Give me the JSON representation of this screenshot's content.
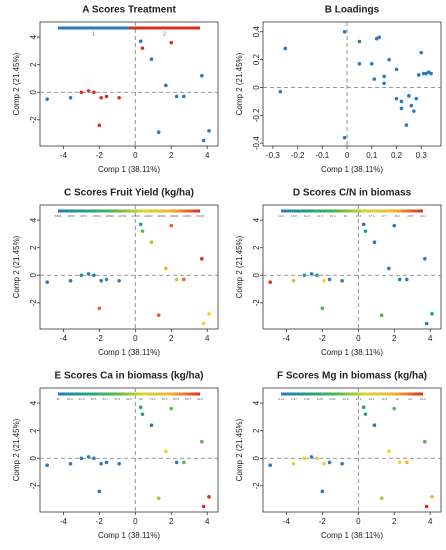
{
  "chart_data": [
    {
      "type": "scatter",
      "title": "A  Scores Treatment",
      "x_label": "Comp 1 (38.11%)",
      "y_label": "Comp 2 (21.45%)",
      "xlim": [
        -5.3,
        4.6
      ],
      "ylim": [
        -3.9,
        5.1
      ],
      "xticks": [
        -4,
        -2,
        0,
        2,
        4
      ],
      "yticks": [
        -2,
        0,
        2,
        4
      ],
      "x": [
        -4.9,
        -3.6,
        -3.0,
        -2.6,
        -2.3,
        -1.9,
        -1.6,
        -0.9,
        -2.0,
        0.3,
        0.4,
        0.9,
        1.3,
        1.7,
        2.0,
        2.3,
        2.7,
        3.7,
        3.8,
        4.1
      ],
      "y": [
        -0.5,
        -0.4,
        0.0,
        0.1,
        0.0,
        -0.4,
        -0.3,
        -0.4,
        -2.4,
        3.7,
        3.2,
        2.4,
        -2.9,
        0.5,
        3.6,
        -0.3,
        -0.3,
        1.2,
        -3.5,
        -2.8
      ],
      "colors": [
        "#2a7ab9",
        "#2a7ab9",
        "#d7301f",
        "#d7301f",
        "#d7301f",
        "#d7301f",
        "#d7301f",
        "#d7301f",
        "#d7301f",
        "#2a7ab9",
        "#d7301f",
        "#2a7ab9",
        "#2a7ab9",
        "#2a7ab9",
        "#d7301f",
        "#2a7ab9",
        "#2a7ab9",
        "#2a7ab9",
        "#2a7ab9",
        "#2a7ab9"
      ],
      "colorbar_colors": [
        "#2a7ab9",
        "#d7301f"
      ],
      "colorbar_labels": [
        "1",
        "2"
      ]
    },
    {
      "type": "scatter",
      "title": "B  Loadings",
      "x_label": "Comp 1 (38.11%)",
      "y_label": "Comp 2 (21.45%)",
      "xlim": [
        -0.34,
        0.38
      ],
      "ylim": [
        -0.42,
        0.47
      ],
      "xticks": [
        -0.3,
        -0.2,
        -0.1,
        0.0,
        0.1,
        0.2,
        0.3
      ],
      "yticks": [
        -0.4,
        -0.2,
        0.0,
        0.2,
        0.4
      ],
      "x": [
        -0.25,
        -0.27,
        -0.01,
        0.05,
        0.05,
        0.1,
        0.12,
        0.13,
        0.11,
        0.15,
        0.15,
        0.17,
        0.2,
        0.2,
        0.22,
        0.22,
        0.24,
        0.25,
        0.26,
        0.27,
        0.29,
        0.31,
        0.32,
        0.33,
        0.34,
        0.3,
        -0.01,
        0.28
      ],
      "y": [
        0.28,
        -0.03,
        0.4,
        0.17,
        0.33,
        0.17,
        0.35,
        0.36,
        0.06,
        0.03,
        0.08,
        0.2,
        0.13,
        -0.08,
        -0.1,
        -0.15,
        -0.27,
        -0.06,
        -0.13,
        -0.17,
        0.09,
        0.1,
        0.1,
        0.11,
        0.1,
        0.25,
        -0.36,
        -0.08
      ],
      "color": "#2a7ab9"
    },
    {
      "type": "scatter",
      "title": "C  Scores Fruit Yield (kg/ha)",
      "x_label": "Comp 1 (38.11%)",
      "y_label": "Comp 2 (21.45%)",
      "xlim": [
        -5.3,
        4.6
      ],
      "ylim": [
        -3.9,
        5.1
      ],
      "xticks": [
        -4,
        -2,
        0,
        2,
        4
      ],
      "yticks": [
        -2,
        0,
        2,
        4
      ],
      "x": [
        -4.9,
        -3.6,
        -3.0,
        -2.6,
        -2.3,
        -1.9,
        -1.6,
        -0.9,
        -2.0,
        0.3,
        0.4,
        0.9,
        1.3,
        1.7,
        2.0,
        2.3,
        2.7,
        3.7,
        3.8,
        4.1
      ],
      "y": [
        -0.5,
        -0.4,
        0.0,
        0.1,
        0.0,
        -0.4,
        -0.3,
        -0.4,
        -2.4,
        3.7,
        3.2,
        2.4,
        -2.9,
        0.5,
        3.6,
        -0.3,
        -0.3,
        1.2,
        -3.5,
        -2.8
      ],
      "colors": [
        "#2a7ab9",
        "#2a7ab9",
        "#1fa187",
        "#2a7ab9",
        "#2a7ab9",
        "#2a7ab9",
        "#1fa187",
        "#2a7ab9",
        "#e8631f",
        "#1fa187",
        "#54b848",
        "#a8c83a",
        "#e8631f",
        "#f2b134",
        "#e8631f",
        "#f2b134",
        "#e8631f",
        "#d7301f",
        "#f2d21b",
        "#f2d21b"
      ],
      "colorbar_colors": [
        "#2a7ab9",
        "#1fa187",
        "#54b848",
        "#d9d92a",
        "#f2b134",
        "#d7301f"
      ],
      "colorbar_labels": [
        "5800",
        "9800",
        "9970",
        "15150",
        "18680",
        "20700",
        "24900",
        "29400",
        "32000",
        "40000",
        "43600",
        "47100"
      ]
    },
    {
      "type": "scatter",
      "title": "D  Scores C/N in biomass",
      "x_label": "Comp 1 (38.11%)",
      "y_label": "Comp 2 (21.45%)",
      "xlim": [
        -5.3,
        4.6
      ],
      "ylim": [
        -3.9,
        5.1
      ],
      "xticks": [
        -4,
        -2,
        0,
        2,
        4
      ],
      "yticks": [
        -2,
        0,
        2,
        4
      ],
      "x": [
        -4.9,
        -3.6,
        -3.0,
        -2.6,
        -2.3,
        -1.9,
        -1.6,
        -0.9,
        -2.0,
        0.3,
        0.4,
        0.9,
        1.3,
        1.7,
        2.0,
        2.3,
        2.7,
        3.7,
        3.8,
        4.1
      ],
      "y": [
        -0.5,
        -0.4,
        0.0,
        0.1,
        0.0,
        -0.4,
        -0.3,
        -0.4,
        -2.4,
        3.7,
        3.2,
        2.4,
        -2.9,
        0.5,
        3.6,
        -0.3,
        -0.3,
        1.2,
        -3.5,
        -2.8
      ],
      "colors": [
        "#d7301f",
        "#f2b134",
        "#1fa187",
        "#2a7ab9",
        "#1fa187",
        "#f2d21b",
        "#2a7ab9",
        "#2a7ab9",
        "#54b848",
        "#2a7ab9",
        "#1fa187",
        "#2a7ab9",
        "#54b848",
        "#2a7ab9",
        "#2a7ab9",
        "#2a7ab9",
        "#2a7ab9",
        "#2a7ab9",
        "#2a7ab9",
        "#1fa187"
      ],
      "colorbar_colors": [
        "#2a7ab9",
        "#1fa187",
        "#54b848",
        "#d9d92a",
        "#f2b134",
        "#d7301f"
      ],
      "colorbar_labels": [
        "13.2",
        "13.8",
        "14.3",
        "14.9",
        "15.4",
        "16",
        "16.6",
        "17.1",
        "17.7",
        "18.2",
        "18.8",
        "19.4"
      ]
    },
    {
      "type": "scatter",
      "title": "E  Scores Ca in biomass (kg/ha)",
      "x_label": "Comp 1 (38.11%)",
      "y_label": "Comp 2 (21.45%)",
      "xlim": [
        -5.3,
        4.6
      ],
      "ylim": [
        -3.9,
        5.1
      ],
      "xticks": [
        -4,
        -2,
        0,
        2,
        4
      ],
      "yticks": [
        -2,
        0,
        2,
        4
      ],
      "x": [
        -4.9,
        -3.6,
        -3.0,
        -2.6,
        -2.3,
        -1.9,
        -1.6,
        -0.9,
        -2.0,
        0.3,
        0.4,
        0.9,
        1.3,
        1.7,
        2.0,
        2.3,
        2.7,
        3.7,
        3.8,
        4.1
      ],
      "y": [
        -0.5,
        -0.4,
        0.0,
        0.1,
        0.0,
        -0.4,
        -0.3,
        -0.4,
        -2.4,
        3.7,
        3.2,
        2.4,
        -2.9,
        0.5,
        3.6,
        -0.3,
        -0.3,
        1.2,
        -3.5,
        -2.8
      ],
      "colors": [
        "#2a7ab9",
        "#2a7ab9",
        "#2a7ab9",
        "#2a7ab9",
        "#2a7ab9",
        "#2a7ab9",
        "#2a7ab9",
        "#2a7ab9",
        "#2a7ab9",
        "#1fa187",
        "#1fa187",
        "#2a7ab9",
        "#a8c83a",
        "#f2d21b",
        "#54b848",
        "#2a7ab9",
        "#54b848",
        "#54b848",
        "#d7301f",
        "#d7301f"
      ],
      "colorbar_colors": [
        "#2a7ab9",
        "#1fa187",
        "#54b848",
        "#d9d92a",
        "#f2b134",
        "#d7301f"
      ],
      "colorbar_labels": [
        "31",
        "36.2",
        "41.3",
        "46.5",
        "51.7",
        "57.6",
        "62.8",
        "68",
        "73.2",
        "78.3",
        "83.5",
        "88.7",
        "93.9"
      ]
    },
    {
      "type": "scatter",
      "title": "F  Scores Mg in biomass (kg/ha)",
      "x_label": "Comp 1 (38.11%)",
      "y_label": "Comp 2 (21.45%)",
      "xlim": [
        -5.3,
        4.6
      ],
      "ylim": [
        -3.9,
        5.1
      ],
      "xticks": [
        -4,
        -2,
        0,
        2,
        4
      ],
      "yticks": [
        -2,
        0,
        2,
        4
      ],
      "x": [
        -4.9,
        -3.6,
        -3.0,
        -2.6,
        -2.3,
        -1.9,
        -1.6,
        -0.9,
        -2.0,
        0.3,
        0.4,
        0.9,
        1.3,
        1.7,
        2.0,
        2.3,
        2.7,
        3.7,
        3.8,
        4.1
      ],
      "y": [
        -0.5,
        -0.4,
        0.0,
        0.1,
        0.0,
        -0.4,
        -0.3,
        -0.4,
        -2.4,
        3.7,
        3.2,
        2.4,
        -2.9,
        0.5,
        3.6,
        -0.3,
        -0.3,
        1.2,
        -3.5,
        -2.8
      ],
      "colors": [
        "#2a7ab9",
        "#d9d92a",
        "#f2d21b",
        "#2a7ab9",
        "#d9d92a",
        "#f2d21b",
        "#2a7ab9",
        "#2a7ab9",
        "#2a7ab9",
        "#1fa187",
        "#1fa187",
        "#2a7ab9",
        "#a8c83a",
        "#f2d21b",
        "#54b848",
        "#f2d21b",
        "#f2b134",
        "#54b848",
        "#d7301f",
        "#f2b134"
      ],
      "colorbar_colors": [
        "#2a7ab9",
        "#1fa187",
        "#54b848",
        "#d9d92a",
        "#f2b134",
        "#d7301f"
      ],
      "colorbar_labels": [
        "0.41",
        "2.37",
        "4.32",
        "6.28",
        "8.24",
        "10.2",
        "12.1",
        "14.1",
        "16.1",
        "18",
        "20",
        "21.9"
      ]
    }
  ]
}
